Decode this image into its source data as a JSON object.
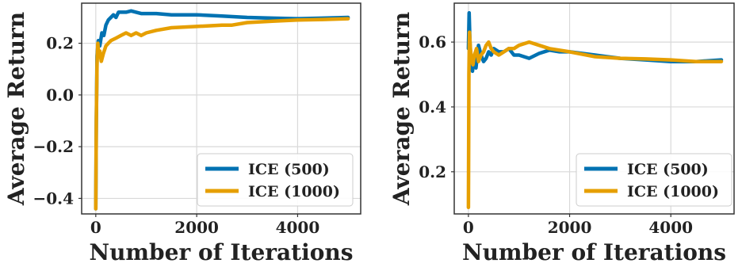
{
  "chart_data": [
    {
      "type": "line",
      "xlabel": "Number of Iterations",
      "ylabel": "Average Return",
      "xlim": [
        -280,
        5250
      ],
      "ylim": [
        -0.46,
        0.355
      ],
      "xticks": [
        0,
        2000,
        4000
      ],
      "xtick_labels": [
        "0",
        "2000",
        "4000"
      ],
      "yticks": [
        -0.4,
        -0.2,
        0.0,
        0.2
      ],
      "ytick_labels": [
        "−0.4",
        "−0.2",
        "0.0",
        "0.2"
      ],
      "grid": true,
      "legend_position": "lower-right",
      "series": [
        {
          "name": "ICE (500)",
          "color": "#0072B2",
          "x": [
            0,
            10,
            25,
            50,
            80,
            120,
            160,
            200,
            250,
            300,
            350,
            400,
            450,
            500,
            600,
            700,
            800,
            900,
            1000,
            1200,
            1500,
            2000,
            2500,
            3000,
            3500,
            4000,
            4500,
            5000
          ],
          "y": [
            -0.44,
            -0.1,
            0.15,
            0.21,
            0.19,
            0.24,
            0.23,
            0.27,
            0.29,
            0.3,
            0.31,
            0.3,
            0.32,
            0.32,
            0.32,
            0.325,
            0.32,
            0.315,
            0.315,
            0.315,
            0.31,
            0.31,
            0.305,
            0.3,
            0.297,
            0.295,
            0.297,
            0.3
          ]
        },
        {
          "name": "ICE (1000)",
          "color": "#E69F00",
          "x": [
            0,
            10,
            25,
            40,
            60,
            80,
            110,
            150,
            200,
            250,
            300,
            400,
            500,
            600,
            700,
            800,
            900,
            1000,
            1200,
            1500,
            2000,
            2500,
            2700,
            3000,
            3500,
            4000,
            4500,
            5000
          ],
          "y": [
            -0.44,
            -0.1,
            0.12,
            0.2,
            0.15,
            0.17,
            0.13,
            0.16,
            0.19,
            0.2,
            0.21,
            0.22,
            0.23,
            0.24,
            0.23,
            0.24,
            0.23,
            0.24,
            0.25,
            0.26,
            0.265,
            0.27,
            0.27,
            0.28,
            0.285,
            0.29,
            0.292,
            0.295
          ]
        }
      ]
    },
    {
      "type": "line",
      "xlabel": "Number of Iterations",
      "ylabel": "Average Return",
      "xlim": [
        -280,
        5250
      ],
      "ylim": [
        0.07,
        0.72
      ],
      "xticks": [
        0,
        2000,
        4000
      ],
      "xtick_labels": [
        "0",
        "2000",
        "4000"
      ],
      "yticks": [
        0.2,
        0.4,
        0.6
      ],
      "ytick_labels": [
        "0.2",
        "0.4",
        "0.6"
      ],
      "grid": true,
      "legend_position": "lower-right",
      "series": [
        {
          "name": "ICE (500)",
          "color": "#0072B2",
          "x": [
            0,
            15,
            30,
            50,
            80,
            110,
            150,
            200,
            250,
            300,
            350,
            400,
            450,
            500,
            600,
            700,
            800,
            900,
            1000,
            1200,
            1400,
            1600,
            1800,
            2000,
            2500,
            3000,
            3500,
            4000,
            4500,
            5000
          ],
          "y": [
            0.58,
            0.69,
            0.6,
            0.53,
            0.51,
            0.55,
            0.52,
            0.59,
            0.56,
            0.54,
            0.55,
            0.57,
            0.56,
            0.58,
            0.57,
            0.57,
            0.58,
            0.56,
            0.56,
            0.55,
            0.565,
            0.575,
            0.57,
            0.57,
            0.56,
            0.55,
            0.545,
            0.54,
            0.54,
            0.545
          ]
        },
        {
          "name": "ICE (1000)",
          "color": "#E69F00",
          "x": [
            0,
            10,
            20,
            40,
            60,
            90,
            120,
            160,
            200,
            250,
            300,
            350,
            400,
            450,
            500,
            600,
            700,
            800,
            900,
            1000,
            1200,
            1400,
            1600,
            2000,
            2500,
            3000,
            3500,
            4000,
            4500,
            5000
          ],
          "y": [
            0.09,
            0.5,
            0.63,
            0.58,
            0.55,
            0.53,
            0.56,
            0.58,
            0.54,
            0.56,
            0.57,
            0.59,
            0.6,
            0.58,
            0.57,
            0.56,
            0.57,
            0.58,
            0.58,
            0.59,
            0.6,
            0.59,
            0.58,
            0.57,
            0.555,
            0.55,
            0.548,
            0.545,
            0.54,
            0.54
          ]
        }
      ]
    }
  ]
}
